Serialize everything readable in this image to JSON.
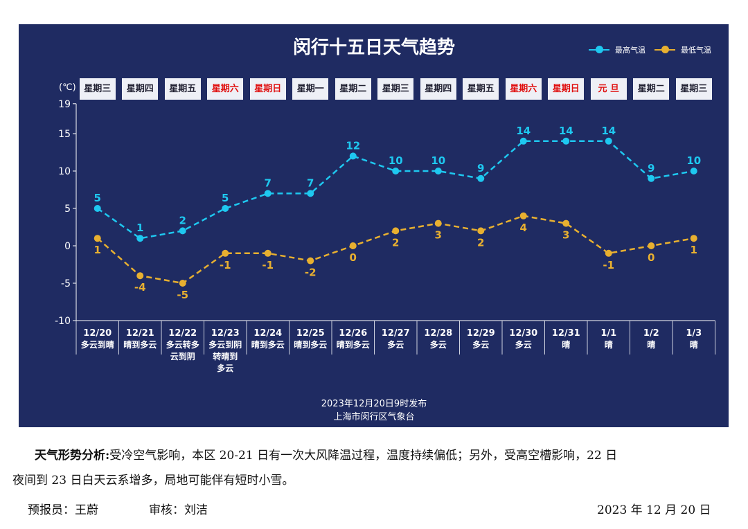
{
  "chart_data": {
    "type": "line",
    "title": "闵行十五日天气趋势",
    "unit_label": "(℃)",
    "ylim": [
      -10,
      19
    ],
    "yticks": [
      19,
      15,
      10,
      5,
      0,
      -5,
      -10
    ],
    "grid": false,
    "legend": "top-right",
    "weekdays": [
      "星期三",
      "星期四",
      "星期五",
      "星期六",
      "星期日",
      "星期一",
      "星期二",
      "星期三",
      "星期四",
      "星期五",
      "星期六",
      "星期日",
      "元 旦",
      "星期二",
      "星期三"
    ],
    "weekday_red": [
      false,
      false,
      false,
      true,
      true,
      false,
      false,
      false,
      false,
      false,
      true,
      true,
      true,
      false,
      false
    ],
    "categories": [
      "12/20",
      "12/21",
      "12/22",
      "12/23",
      "12/24",
      "12/25",
      "12/26",
      "12/27",
      "12/28",
      "12/29",
      "12/30",
      "12/31",
      "1/1",
      "1/2",
      "1/3"
    ],
    "conditions": [
      "多云到晴",
      "晴到多云",
      "多云转多云到阴",
      "多云到阴转晴到多云",
      "晴到多云",
      "晴到多云",
      "晴到多云",
      "多云",
      "多云",
      "多云",
      "多云",
      "晴",
      "晴",
      "晴",
      "晴"
    ],
    "series": [
      {
        "name": "最高气温",
        "color": "#1ec8f0",
        "values": [
          5,
          1,
          2,
          5,
          7,
          7,
          12,
          10,
          10,
          9,
          14,
          14,
          14,
          9,
          10
        ]
      },
      {
        "name": "最低气温",
        "color": "#e8b030",
        "values": [
          1,
          -4,
          -5,
          -1,
          -1,
          -2,
          0,
          2,
          3,
          2,
          4,
          3,
          -1,
          0,
          1
        ]
      }
    ],
    "footer": [
      "2023年12月20日9时发布",
      "上海市闵行区气象台"
    ]
  },
  "analysis": {
    "label": "天气形势分析:",
    "line1": "受冷空气影响，本区 20-21 日有一次大风降温过程，温度持续偏低；另外，受高空槽影响，22 日",
    "line2": "夜间到 23 日白天云系增多，局地可能伴有短时小雪。"
  },
  "signature": {
    "forecaster": "预报员：王蔚",
    "reviewer": "审核：刘洁",
    "date": "2023 年 12 月 20 日"
  }
}
